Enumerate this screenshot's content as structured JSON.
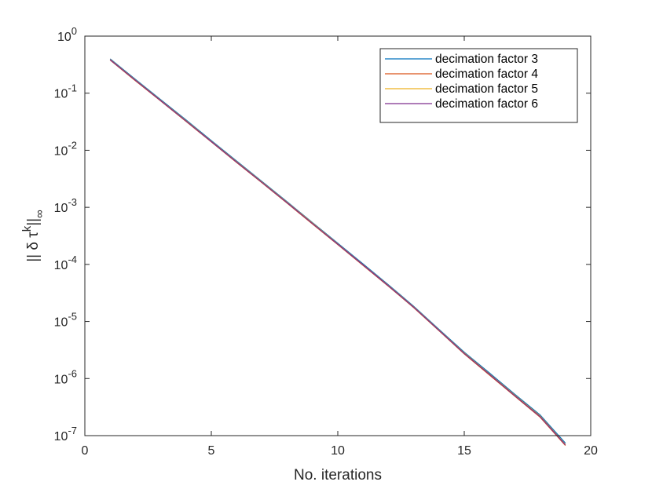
{
  "chart_data": {
    "type": "line",
    "xlabel": "No. iterations",
    "ylabel": "||δ τ^k||_∞",
    "ylabel_parts": {
      "open": "|| δ τ",
      "sup": "k",
      "close": "||",
      "sub": "∞"
    },
    "xlim": [
      0,
      20
    ],
    "ylim": [
      1e-07,
      1
    ],
    "yscale": "log",
    "x_ticks": [
      0,
      5,
      10,
      15,
      20
    ],
    "x_tick_labels": [
      "0",
      "5",
      "10",
      "15",
      "20"
    ],
    "y_tick_exponents": [
      0,
      -1,
      -2,
      -3,
      -4,
      -5,
      -6,
      -7
    ],
    "y_tick_base": "10",
    "grid": false,
    "legend_position": "top-right",
    "x": [
      1,
      2,
      3,
      4,
      5,
      6,
      7,
      8,
      9,
      10,
      11,
      12,
      13,
      14,
      15,
      16,
      17,
      18,
      19
    ],
    "series": [
      {
        "name": "decimation factor 3",
        "color": "#0072BD",
        "values": [
          0.4,
          0.175,
          0.077,
          0.034,
          0.0148,
          0.0065,
          0.00285,
          0.00125,
          0.00054,
          0.000235,
          0.000102,
          4.4e-05,
          1.85e-05,
          7.3e-06,
          2.9e-06,
          1.25e-06,
          5.3e-07,
          2.3e-07,
          7.4e-08
        ]
      },
      {
        "name": "decimation factor 4",
        "color": "#D95319",
        "values": [
          0.38,
          0.165,
          0.073,
          0.032,
          0.014,
          0.0061,
          0.0027,
          0.00118,
          0.00051,
          0.000222,
          9.6e-05,
          4.15e-05,
          1.75e-05,
          6.9e-06,
          2.7e-06,
          1.15e-06,
          4.9e-07,
          2.1e-07,
          6.7e-08
        ]
      },
      {
        "name": "decimation factor 5",
        "color": "#EDB120",
        "values": [
          0.39,
          0.17,
          0.075,
          0.033,
          0.0144,
          0.0063,
          0.00278,
          0.00122,
          0.00053,
          0.000229,
          9.9e-05,
          4.28e-05,
          1.8e-05,
          7.1e-06,
          2.8e-06,
          1.2e-06,
          5.1e-07,
          2.2e-07,
          7e-08
        ]
      },
      {
        "name": "decimation factor 6",
        "color": "#7E2F8E",
        "values": [
          0.385,
          0.168,
          0.074,
          0.0325,
          0.0142,
          0.0062,
          0.00274,
          0.0012,
          0.00052,
          0.000226,
          9.8e-05,
          4.22e-05,
          1.78e-05,
          7e-06,
          2.75e-06,
          1.18e-06,
          5e-07,
          2.15e-07,
          6.9e-08
        ]
      }
    ]
  }
}
